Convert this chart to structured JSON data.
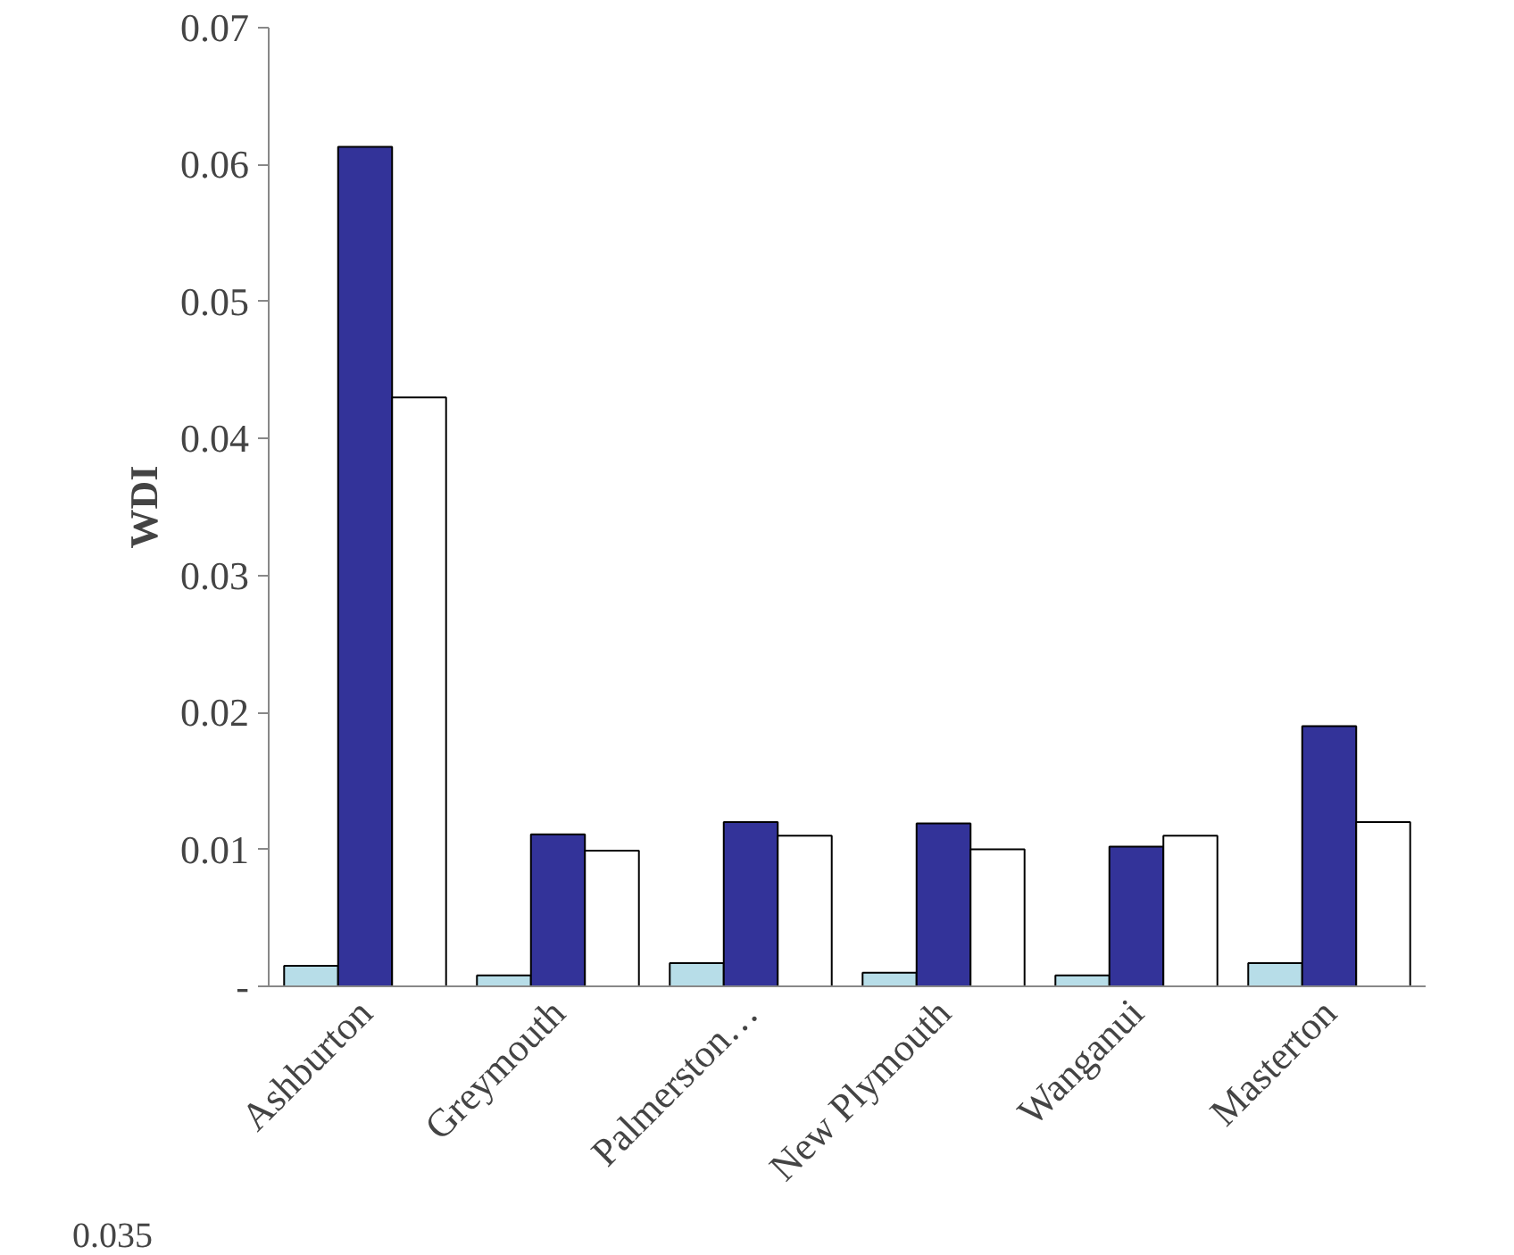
{
  "chart_data": {
    "type": "bar",
    "ylabel": "WDI",
    "categories": [
      "Ashburton",
      "Greymouth",
      "Palmerston…",
      "New Plymouth",
      "Wanganui",
      "Masterton"
    ],
    "series": [
      {
        "color": "#b7dde8",
        "values": [
          0.0015,
          0.0008,
          0.0017,
          0.001,
          0.0008,
          0.0017
        ]
      },
      {
        "color": "#333399",
        "values": [
          0.0613,
          0.0111,
          0.012,
          0.0119,
          0.0102,
          0.019
        ]
      },
      {
        "color": "#ffffff",
        "values": [
          0.043,
          0.0099,
          0.011,
          0.01,
          0.011,
          0.012
        ]
      }
    ],
    "ylim": [
      0,
      0.07
    ],
    "yticks": [
      {
        "value": 0,
        "label": "-"
      },
      0.01,
      0.02,
      0.03,
      0.04,
      0.05,
      0.06,
      0.07
    ],
    "grid": false,
    "annotations": [
      "0.035"
    ]
  }
}
